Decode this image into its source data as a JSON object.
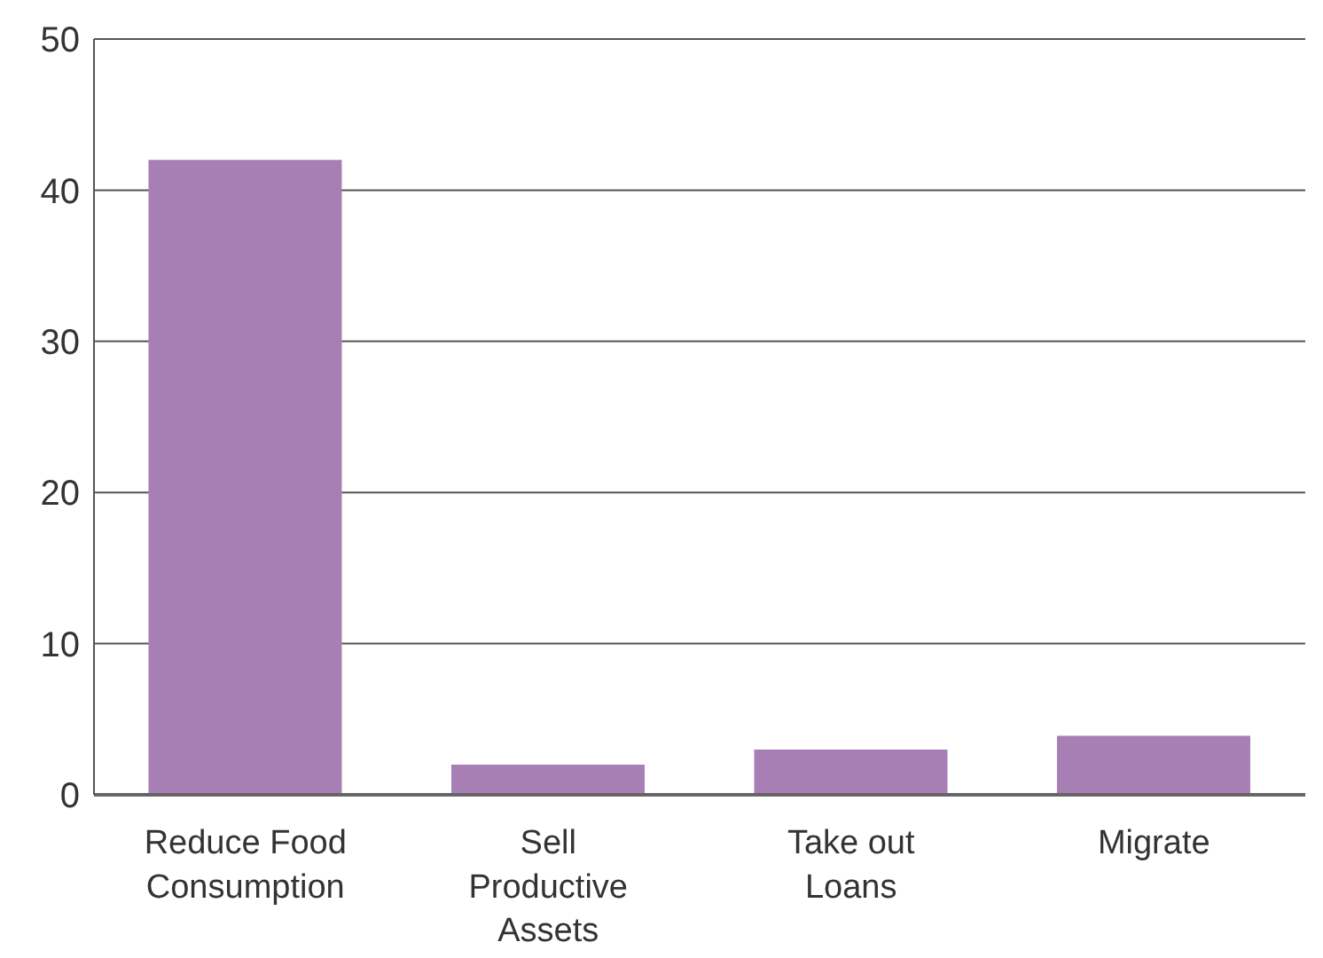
{
  "chart_data": {
    "type": "bar",
    "categories": [
      "Reduce Food Consumption",
      "Sell Productive Assets",
      "Take out Loans",
      "Migrate"
    ],
    "values": [
      42,
      2,
      3,
      3.9
    ],
    "color": "#a87fb5",
    "ylim": [
      0,
      50
    ],
    "yticks": [
      0,
      10,
      20,
      30,
      40,
      50
    ],
    "grid": "y",
    "legend": false
  }
}
